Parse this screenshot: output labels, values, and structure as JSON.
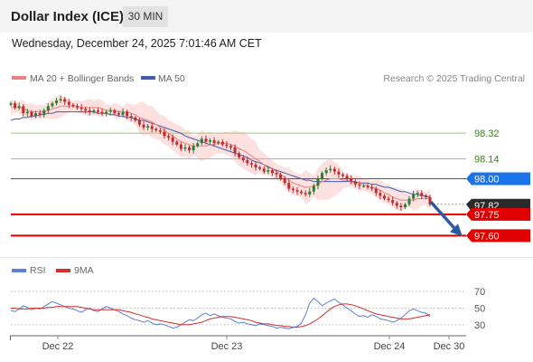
{
  "header": {
    "title": "Dollar Index (ICE)",
    "timeframe": "30 MIN"
  },
  "datetime": "Wednesday, December 24, 2025 7:01:46 AM CET",
  "colors": {
    "candle_up": "#2e7d32",
    "candle_down": "#c62828",
    "ma20": "#f08080",
    "bollinger_fill": "#fde0e0",
    "ma50": "#3f5fae",
    "support": "#e00000",
    "resistance_line": "#9ccc65",
    "resistance_label": "#3a7d1e",
    "pivot": "#1565c0",
    "pivot_label": "#1a73e8",
    "arrow": "#2d5aa0",
    "rsi": "#5b7fd6",
    "rsi_ma": "#d32f2f"
  },
  "chart_data": [
    {
      "type": "candlestick",
      "title": "",
      "legend": [
        "MA 20 + Bollinger Bands",
        "MA 50"
      ],
      "legend_placement": "top-left",
      "source_note": "Research © 2025 Trading Central",
      "ylim": [
        97.45,
        98.62
      ],
      "x_tick_labels": [
        "Dec 22",
        "Dec 23",
        "Dec 24",
        "Dec 30"
      ],
      "close": [
        98.53,
        98.5,
        98.51,
        98.46,
        98.47,
        98.44,
        98.46,
        98.45,
        98.48,
        98.51,
        98.53,
        98.55,
        98.56,
        98.54,
        98.52,
        98.51,
        98.5,
        98.49,
        98.48,
        98.47,
        98.48,
        98.47,
        98.46,
        98.47,
        98.48,
        98.46,
        98.45,
        98.47,
        98.44,
        98.43,
        98.41,
        98.38,
        98.36,
        98.37,
        98.35,
        98.34,
        98.33,
        98.3,
        98.29,
        98.26,
        98.24,
        98.21,
        98.22,
        98.2,
        98.23,
        98.25,
        98.28,
        98.26,
        98.27,
        98.25,
        98.26,
        98.24,
        98.23,
        98.22,
        98.18,
        98.15,
        98.13,
        98.11,
        98.1,
        98.08,
        98.07,
        98.05,
        98.06,
        98.04,
        98.03,
        98.0,
        97.97,
        97.93,
        97.92,
        97.91,
        97.9,
        97.89,
        97.91,
        97.95,
        98.0,
        98.04,
        98.06,
        98.07,
        98.05,
        98.03,
        98.02,
        98.0,
        97.98,
        97.96,
        97.95,
        97.95,
        97.94,
        97.93,
        97.9,
        97.88,
        97.86,
        97.85,
        97.83,
        97.81,
        97.8,
        97.82,
        97.86,
        97.89,
        97.9,
        97.88,
        97.87,
        97.82
      ],
      "ma20": [
        98.5,
        98.5,
        98.5,
        98.49,
        98.48,
        98.47,
        98.47,
        98.47,
        98.47,
        98.48,
        98.49,
        98.5,
        98.51,
        98.51,
        98.51,
        98.51,
        98.51,
        98.5,
        98.5,
        98.5,
        98.5,
        98.5,
        98.49,
        98.48,
        98.48,
        98.48,
        98.47,
        98.47,
        98.47,
        98.46,
        98.45,
        98.43,
        98.42,
        98.41,
        98.4,
        98.38,
        98.36,
        98.34,
        98.32,
        98.3,
        98.28,
        98.26,
        98.25,
        98.24,
        98.23,
        98.23,
        98.23,
        98.23,
        98.24,
        98.24,
        98.25,
        98.25,
        98.25,
        98.24,
        98.23,
        98.21,
        98.2,
        98.18,
        98.16,
        98.14,
        98.12,
        98.1,
        98.09,
        98.07,
        98.05,
        98.03,
        98.01,
        97.99,
        97.97,
        97.96,
        97.95,
        97.94,
        97.94,
        97.95,
        97.96,
        97.98,
        97.99,
        98.0,
        98.0,
        98.0,
        97.99,
        97.99,
        97.98,
        97.97,
        97.97,
        97.96,
        97.95,
        97.94,
        97.93,
        97.92,
        97.9,
        97.89,
        97.87,
        97.86,
        97.85,
        97.85,
        97.85,
        97.85,
        97.86,
        97.86,
        97.86,
        97.86
      ],
      "ma50": [
        98.41,
        98.42,
        98.42,
        98.43,
        98.43,
        98.44,
        98.44,
        98.45,
        98.45,
        98.46,
        98.46,
        98.47,
        98.47,
        98.47,
        98.47,
        98.47,
        98.47,
        98.47,
        98.47,
        98.47,
        98.47,
        98.46,
        98.46,
        98.46,
        98.45,
        98.45,
        98.44,
        98.44,
        98.43,
        98.43,
        98.42,
        98.41,
        98.41,
        98.4,
        98.39,
        98.38,
        98.37,
        98.36,
        98.35,
        98.34,
        98.33,
        98.32,
        98.3,
        98.29,
        98.28,
        98.27,
        98.26,
        98.25,
        98.24,
        98.23,
        98.22,
        98.21,
        98.2,
        98.19,
        98.18,
        98.17,
        98.16,
        98.15,
        98.13,
        98.12,
        98.11,
        98.1,
        98.08,
        98.07,
        98.06,
        98.05,
        98.04,
        98.03,
        98.02,
        98.01,
        98.0,
        97.99,
        97.99,
        97.98,
        97.98,
        97.98,
        97.98,
        97.98,
        97.98,
        97.98,
        97.98,
        97.98,
        97.98,
        97.98,
        97.97,
        97.97,
        97.97,
        97.96,
        97.96,
        97.95,
        97.94,
        97.94,
        97.93,
        97.92,
        97.91,
        97.91,
        97.9,
        97.89,
        97.89,
        97.88,
        97.88,
        97.87
      ],
      "levels": [
        {
          "label": "98.32",
          "value": 98.32,
          "kind": "resistance"
        },
        {
          "label": "98.14",
          "value": 98.14,
          "kind": "resistance"
        },
        {
          "label": "98.00",
          "value": 98.0,
          "kind": "pivot"
        },
        {
          "label": "97.82",
          "value": 97.82,
          "kind": "last_price"
        },
        {
          "label": "97.75",
          "value": 97.75,
          "kind": "support"
        },
        {
          "label": "97.60",
          "value": 97.6,
          "kind": "support"
        }
      ],
      "forecast_arrow": {
        "from": 97.83,
        "to": 97.62
      }
    },
    {
      "type": "line",
      "title": "",
      "legend": [
        "RSI",
        "9MA"
      ],
      "legend_placement": "top-left",
      "ylim": [
        20,
        80
      ],
      "y_tick_labels": [
        "70",
        "50",
        "30"
      ],
      "y_ticks": [
        70,
        50,
        30
      ],
      "rsi": [
        47,
        46,
        49,
        53,
        51,
        48,
        50,
        49,
        52,
        55,
        58,
        56,
        54,
        52,
        50,
        49,
        47,
        45,
        48,
        50,
        47,
        46,
        49,
        52,
        50,
        48,
        46,
        43,
        41,
        38,
        36,
        35,
        33,
        35,
        32,
        30,
        31,
        30,
        28,
        26,
        27,
        30,
        33,
        36,
        35,
        38,
        42,
        44,
        41,
        43,
        41,
        39,
        38,
        37,
        34,
        32,
        33,
        31,
        30,
        29,
        31,
        30,
        29,
        28,
        26,
        27,
        26,
        25,
        27,
        28,
        32,
        42,
        56,
        62,
        58,
        53,
        56,
        59,
        61,
        57,
        54,
        50,
        47,
        43,
        40,
        41,
        39,
        42,
        40,
        37,
        36,
        35,
        33,
        35,
        38,
        42,
        47,
        49,
        47,
        45,
        44,
        40
      ],
      "ma9": [
        50,
        50,
        49,
        49,
        49,
        50,
        50,
        50,
        50,
        51,
        51,
        52,
        52,
        52,
        52,
        52,
        52,
        51,
        50,
        49,
        48,
        48,
        48,
        48,
        48,
        48,
        48,
        47,
        46,
        45,
        43,
        42,
        40,
        39,
        37,
        36,
        35,
        34,
        33,
        32,
        31,
        30,
        30,
        30,
        31,
        32,
        33,
        35,
        37,
        38,
        39,
        40,
        40,
        40,
        39,
        38,
        37,
        36,
        35,
        33,
        32,
        31,
        31,
        30,
        29,
        29,
        28,
        28,
        27,
        27,
        28,
        29,
        31,
        34,
        37,
        41,
        45,
        49,
        52,
        54,
        55,
        55,
        54,
        53,
        51,
        49,
        47,
        45,
        43,
        42,
        41,
        40,
        39,
        38,
        37,
        37,
        37,
        38,
        39,
        40,
        41,
        42
      ]
    }
  ]
}
